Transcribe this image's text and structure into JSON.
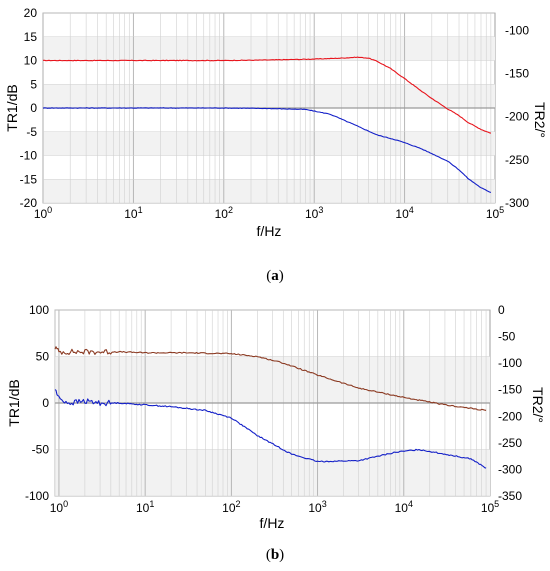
{
  "chart_data": [
    {
      "panel_label": "a",
      "type": "line",
      "x_scale": "log",
      "xlabel": "f/Hz",
      "ylabel_left": "TR1/dB",
      "ylabel_right": "TR2/°",
      "xlim": [
        1,
        100000
      ],
      "ylim_left": [
        -20,
        20
      ],
      "ylim_right": [
        -300,
        -80
      ],
      "x_ticks": [
        1,
        10,
        100,
        1000,
        10000,
        100000
      ],
      "x_tick_labels": [
        {
          "b": "10",
          "e": "0"
        },
        {
          "b": "10",
          "e": "1"
        },
        {
          "b": "10",
          "e": "2"
        },
        {
          "b": "10",
          "e": "3"
        },
        {
          "b": "10",
          "e": "4"
        },
        {
          "b": "10",
          "e": "5"
        }
      ],
      "y_ticks_left": [
        20,
        15,
        10,
        5,
        0,
        -5,
        -10,
        -15,
        -20
      ],
      "y_ticks_right": [
        -100,
        -150,
        -200,
        -250,
        -300
      ],
      "grid": true,
      "series": [
        {
          "axis": "left",
          "color": "#e8141c",
          "x": [
            1,
            10,
            100,
            300,
            1000,
            2000,
            3000,
            4000,
            5000,
            7000,
            10000,
            15000,
            20000,
            30000,
            40000,
            50000,
            70000,
            90000
          ],
          "values": [
            10,
            10,
            10,
            10.1,
            10.3,
            10.5,
            10.7,
            10.5,
            9.8,
            8.3,
            6.2,
            3.7,
            2.0,
            -0.2,
            -1.6,
            -3.0,
            -4.5,
            -5.3
          ]
        },
        {
          "axis": "left",
          "color": "#1420c8",
          "x": [
            1,
            10,
            100,
            300,
            800,
            1500,
            3000,
            5000,
            8000,
            10000,
            15000,
            20000,
            30000,
            40000,
            50000,
            70000,
            90000
          ],
          "values": [
            0,
            0,
            0,
            -0.1,
            -0.3,
            -1.3,
            -3.8,
            -5.7,
            -6.7,
            -7.3,
            -8.5,
            -9.6,
            -11.2,
            -13.0,
            -14.8,
            -16.8,
            -17.8
          ]
        }
      ]
    },
    {
      "panel_label": "b",
      "type": "line",
      "x_scale": "log",
      "xlabel": "f/Hz",
      "ylabel_left": "TR1/dB",
      "ylabel_right": "TR2/°",
      "xlim": [
        0.9,
        100000
      ],
      "ylim_left": [
        -100,
        100
      ],
      "ylim_right": [
        -350,
        0
      ],
      "x_ticks": [
        1,
        10,
        100,
        1000,
        10000,
        100000
      ],
      "x_tick_labels": [
        {
          "b": "10",
          "e": "0"
        },
        {
          "b": "10",
          "e": "1"
        },
        {
          "b": "10",
          "e": "2"
        },
        {
          "b": "10",
          "e": "3"
        },
        {
          "b": "10",
          "e": "4"
        },
        {
          "b": "10",
          "e": "5"
        }
      ],
      "y_ticks_left": [
        100,
        50,
        0,
        -50,
        -100
      ],
      "y_ticks_right": [
        0,
        -50,
        -100,
        -150,
        -200,
        -250,
        -300,
        -350
      ],
      "grid": true,
      "series": [
        {
          "axis": "left",
          "color": "#8b3a22",
          "noisy": true,
          "x": [
            0.9,
            1,
            2,
            5,
            10,
            30,
            100,
            200,
            400,
            1000,
            3000,
            10000,
            30000,
            90000
          ],
          "values": [
            60,
            55,
            55,
            55,
            54,
            54,
            53,
            50,
            43,
            30,
            16,
            6,
            -2,
            -8
          ]
        },
        {
          "axis": "left",
          "color": "#1420c8",
          "noisy": true,
          "x": [
            0.9,
            1,
            1.3,
            2,
            3,
            5,
            10,
            20,
            50,
            100,
            200,
            500,
            1000,
            3000,
            8000,
            15000,
            30000,
            60000,
            90000
          ],
          "values": [
            15,
            5,
            0,
            2,
            0,
            0,
            -2,
            -4,
            -8,
            -16,
            -35,
            -55,
            -63,
            -62,
            -53,
            -50,
            -55,
            -60,
            -70
          ]
        }
      ]
    }
  ]
}
